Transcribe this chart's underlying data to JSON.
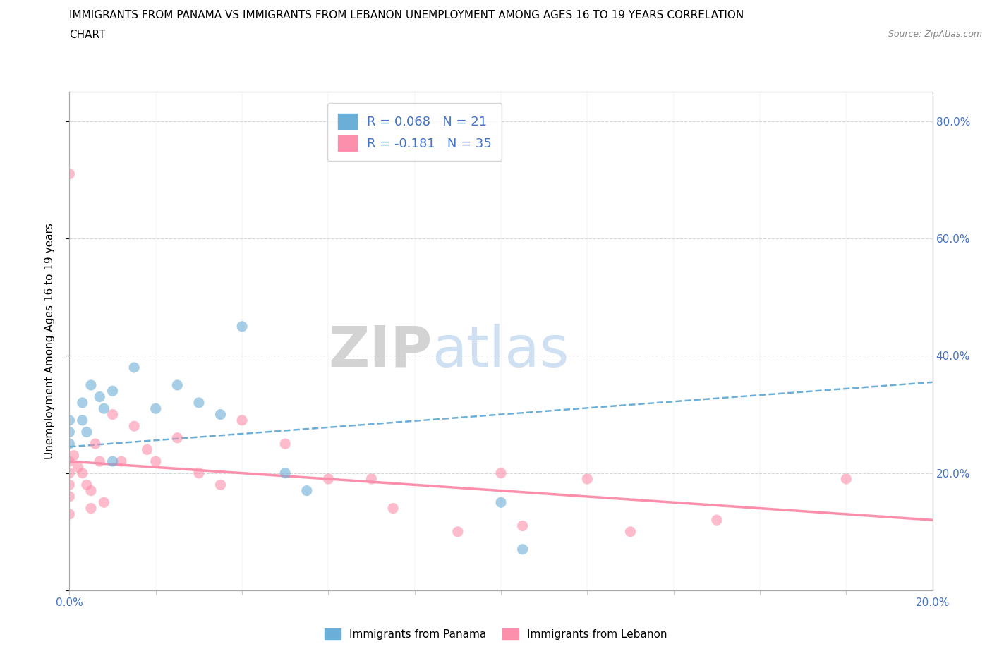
{
  "title_line1": "IMMIGRANTS FROM PANAMA VS IMMIGRANTS FROM LEBANON UNEMPLOYMENT AMONG AGES 16 TO 19 YEARS CORRELATION",
  "title_line2": "CHART",
  "source": "Source: ZipAtlas.com",
  "ylabel": "Unemployment Among Ages 16 to 19 years",
  "xlim": [
    0.0,
    0.2
  ],
  "ylim": [
    0.0,
    0.85
  ],
  "xticks": [
    0.0,
    0.02,
    0.04,
    0.06,
    0.08,
    0.1,
    0.12,
    0.14,
    0.16,
    0.18,
    0.2
  ],
  "yticks": [
    0.0,
    0.2,
    0.4,
    0.6,
    0.8
  ],
  "ytick_labels_right": [
    "",
    "20.0%",
    "40.0%",
    "60.0%",
    "80.0%"
  ],
  "xtick_labels": [
    "0.0%",
    "",
    "",
    "",
    "",
    "",
    "",
    "",
    "",
    "",
    "20.0%"
  ],
  "panama_color": "#6baed6",
  "lebanon_color": "#fc8fab",
  "panama_R": 0.068,
  "panama_N": 21,
  "lebanon_R": -0.181,
  "lebanon_N": 35,
  "panama_scatter_x": [
    0.0,
    0.0,
    0.0,
    0.003,
    0.003,
    0.004,
    0.005,
    0.007,
    0.008,
    0.01,
    0.01,
    0.015,
    0.02,
    0.025,
    0.03,
    0.035,
    0.04,
    0.05,
    0.055,
    0.1,
    0.105
  ],
  "panama_scatter_y": [
    0.25,
    0.27,
    0.29,
    0.32,
    0.29,
    0.27,
    0.35,
    0.33,
    0.31,
    0.34,
    0.22,
    0.38,
    0.31,
    0.35,
    0.32,
    0.3,
    0.45,
    0.2,
    0.17,
    0.15,
    0.07
  ],
  "lebanon_scatter_x": [
    0.0,
    0.0,
    0.0,
    0.0,
    0.0,
    0.0,
    0.001,
    0.002,
    0.003,
    0.004,
    0.005,
    0.005,
    0.006,
    0.007,
    0.008,
    0.01,
    0.012,
    0.015,
    0.018,
    0.02,
    0.025,
    0.03,
    0.035,
    0.04,
    0.05,
    0.06,
    0.07,
    0.075,
    0.09,
    0.1,
    0.105,
    0.12,
    0.13,
    0.15,
    0.18
  ],
  "lebanon_scatter_y": [
    0.71,
    0.22,
    0.2,
    0.18,
    0.16,
    0.13,
    0.23,
    0.21,
    0.2,
    0.18,
    0.17,
    0.14,
    0.25,
    0.22,
    0.15,
    0.3,
    0.22,
    0.28,
    0.24,
    0.22,
    0.26,
    0.2,
    0.18,
    0.29,
    0.25,
    0.19,
    0.19,
    0.14,
    0.1,
    0.2,
    0.11,
    0.19,
    0.1,
    0.12,
    0.19
  ],
  "panama_trend_x": [
    0.0,
    0.2
  ],
  "panama_trend_y": [
    0.245,
    0.355
  ],
  "lebanon_trend_x": [
    0.0,
    0.2
  ],
  "lebanon_trend_y": [
    0.22,
    0.12
  ],
  "watermark_zip": "ZIP",
  "watermark_atlas": "atlas",
  "background_color": "#ffffff",
  "grid_color": "#cccccc",
  "blue_color": "#4472c4",
  "legend_label1": "Immigrants from Panama",
  "legend_label2": "Immigrants from Lebanon"
}
